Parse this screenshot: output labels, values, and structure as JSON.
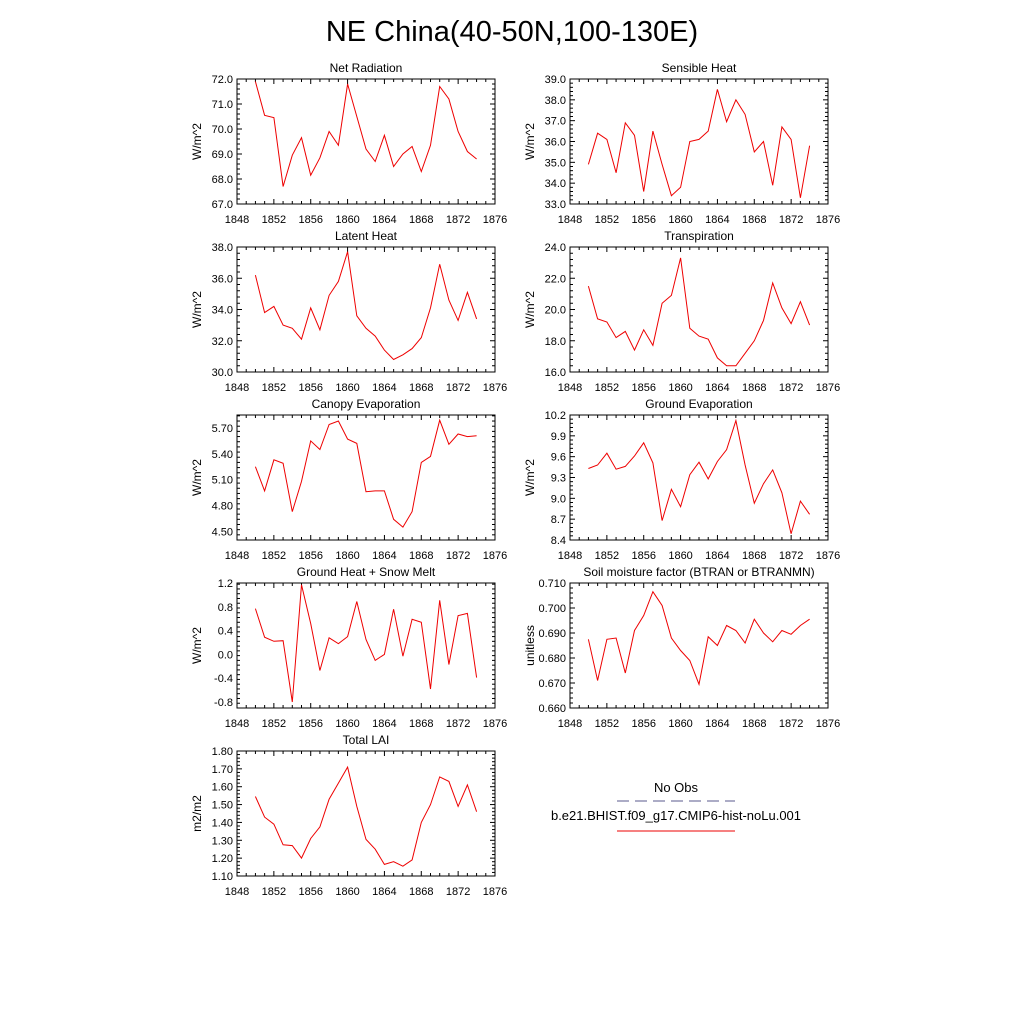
{
  "figure": {
    "title": "NE China(40-50N,100-130E)"
  },
  "legend": {
    "obs_label": "No Obs",
    "obs_color": "#5a5a8c",
    "model_label": "b.e21.BHIST.f09_g17.CMIP6-hist-noLu.001",
    "model_color": "#ee0000"
  },
  "chart_data": [
    {
      "type": "line",
      "title": "Net Radiation",
      "ylabel": "W/m^2",
      "xlim": [
        1848,
        1876
      ],
      "ylim": [
        67.0,
        72.0
      ],
      "x_ticks": [
        "1848",
        "1852",
        "1856",
        "1860",
        "1864",
        "1868",
        "1872",
        "1876"
      ],
      "y_ticks": [
        "67.0",
        "68.0",
        "69.0",
        "70.0",
        "71.0",
        "72.0"
      ],
      "series": [
        {
          "color": "#ee0000",
          "x": [
            1850,
            1851,
            1852,
            1853,
            1854,
            1855,
            1856,
            1857,
            1858,
            1859,
            1860,
            1861,
            1862,
            1863,
            1864,
            1865,
            1866,
            1867,
            1868,
            1869,
            1870,
            1871,
            1872,
            1873,
            1874
          ],
          "values": [
            71.9,
            70.55,
            70.45,
            67.7,
            68.95,
            69.65,
            68.15,
            68.85,
            69.9,
            69.35,
            71.8,
            70.5,
            69.2,
            68.7,
            69.75,
            68.5,
            69.0,
            69.3,
            68.3,
            69.35,
            71.7,
            71.2,
            69.9,
            69.1,
            68.8
          ]
        }
      ]
    },
    {
      "type": "line",
      "title": "Sensible Heat",
      "ylabel": "W/m^2",
      "xlim": [
        1848,
        1876
      ],
      "ylim": [
        33.0,
        39.0
      ],
      "x_ticks": [
        "1848",
        "1852",
        "1856",
        "1860",
        "1864",
        "1868",
        "1872",
        "1876"
      ],
      "y_ticks": [
        "33.0",
        "34.0",
        "35.0",
        "36.0",
        "37.0",
        "38.0",
        "39.0"
      ],
      "series": [
        {
          "color": "#ee0000",
          "x": [
            1850,
            1851,
            1852,
            1853,
            1854,
            1855,
            1856,
            1857,
            1858,
            1859,
            1860,
            1861,
            1862,
            1863,
            1864,
            1865,
            1866,
            1867,
            1868,
            1869,
            1870,
            1871,
            1872,
            1873,
            1874
          ],
          "values": [
            34.9,
            36.4,
            36.1,
            34.5,
            36.9,
            36.3,
            33.6,
            36.5,
            34.9,
            33.4,
            33.8,
            36.0,
            36.1,
            36.5,
            38.5,
            36.95,
            38.0,
            37.3,
            35.5,
            36.0,
            33.9,
            36.7,
            36.1,
            33.3,
            35.8
          ]
        }
      ]
    },
    {
      "type": "line",
      "title": "Latent Heat",
      "ylabel": "W/m^2",
      "xlim": [
        1848,
        1876
      ],
      "ylim": [
        30.0,
        38.0
      ],
      "x_ticks": [
        "1848",
        "1852",
        "1856",
        "1860",
        "1864",
        "1868",
        "1872",
        "1876"
      ],
      "y_ticks": [
        "30.0",
        "32.0",
        "34.0",
        "36.0",
        "38.0"
      ],
      "series": [
        {
          "color": "#ee0000",
          "x": [
            1850,
            1851,
            1852,
            1853,
            1854,
            1855,
            1856,
            1857,
            1858,
            1859,
            1860,
            1861,
            1862,
            1863,
            1864,
            1865,
            1866,
            1867,
            1868,
            1869,
            1870,
            1871,
            1872,
            1873,
            1874
          ],
          "values": [
            36.2,
            33.8,
            34.2,
            33.0,
            32.8,
            32.1,
            34.1,
            32.7,
            34.9,
            35.8,
            37.7,
            33.6,
            32.8,
            32.3,
            31.4,
            30.8,
            31.1,
            31.5,
            32.2,
            34.1,
            36.9,
            34.6,
            33.3,
            35.1,
            33.4
          ]
        }
      ]
    },
    {
      "type": "line",
      "title": "Transpiration",
      "ylabel": "W/m^2",
      "xlim": [
        1848,
        1876
      ],
      "ylim": [
        16.0,
        24.0
      ],
      "x_ticks": [
        "1848",
        "1852",
        "1856",
        "1860",
        "1864",
        "1868",
        "1872",
        "1876"
      ],
      "y_ticks": [
        "16.0",
        "18.0",
        "20.0",
        "22.0",
        "24.0"
      ],
      "series": [
        {
          "color": "#ee0000",
          "x": [
            1850,
            1851,
            1852,
            1853,
            1854,
            1855,
            1856,
            1857,
            1858,
            1859,
            1860,
            1861,
            1862,
            1863,
            1864,
            1865,
            1866,
            1867,
            1868,
            1869,
            1870,
            1871,
            1872,
            1873,
            1874
          ],
          "values": [
            21.5,
            19.4,
            19.2,
            18.2,
            18.6,
            17.4,
            18.7,
            17.7,
            20.4,
            20.9,
            23.3,
            18.8,
            18.3,
            18.1,
            16.9,
            16.4,
            16.4,
            17.2,
            18.0,
            19.3,
            21.7,
            20.1,
            19.1,
            20.5,
            19.0
          ]
        }
      ]
    },
    {
      "type": "line",
      "title": "Canopy Evaporation",
      "ylabel": "W/m^2",
      "xlim": [
        1848,
        1876
      ],
      "ylim": [
        4.4,
        5.85
      ],
      "x_ticks": [
        "1848",
        "1852",
        "1856",
        "1860",
        "1864",
        "1868",
        "1872",
        "1876"
      ],
      "y_ticks": [
        "4.50",
        "4.80",
        "5.10",
        "5.40",
        "5.70"
      ],
      "series": [
        {
          "color": "#ee0000",
          "x": [
            1850,
            1851,
            1852,
            1853,
            1854,
            1855,
            1856,
            1857,
            1858,
            1859,
            1860,
            1861,
            1862,
            1863,
            1864,
            1865,
            1866,
            1867,
            1868,
            1869,
            1870,
            1871,
            1872,
            1873,
            1874
          ],
          "values": [
            5.25,
            4.97,
            5.33,
            5.29,
            4.73,
            5.08,
            5.55,
            5.45,
            5.74,
            5.78,
            5.57,
            5.52,
            4.96,
            4.97,
            4.97,
            4.64,
            4.55,
            4.73,
            5.3,
            5.37,
            5.79,
            5.51,
            5.63,
            5.6,
            5.61
          ]
        }
      ]
    },
    {
      "type": "line",
      "title": "Ground Evaporation",
      "ylabel": "W/m^2",
      "xlim": [
        1848,
        1876
      ],
      "ylim": [
        8.4,
        10.2
      ],
      "x_ticks": [
        "1848",
        "1852",
        "1856",
        "1860",
        "1864",
        "1868",
        "1872",
        "1876"
      ],
      "y_ticks": [
        "8.4",
        "8.7",
        "9.0",
        "9.3",
        "9.6",
        "9.9",
        "10.2"
      ],
      "series": [
        {
          "color": "#ee0000",
          "x": [
            1850,
            1851,
            1852,
            1853,
            1854,
            1855,
            1856,
            1857,
            1858,
            1859,
            1860,
            1861,
            1862,
            1863,
            1864,
            1865,
            1866,
            1867,
            1868,
            1869,
            1870,
            1871,
            1872,
            1873,
            1874
          ],
          "values": [
            9.43,
            9.48,
            9.65,
            9.42,
            9.46,
            9.61,
            9.8,
            9.51,
            8.68,
            9.13,
            8.88,
            9.34,
            9.52,
            9.28,
            9.53,
            9.7,
            10.12,
            9.48,
            8.93,
            9.21,
            9.41,
            9.08,
            8.49,
            8.96,
            8.77
          ]
        }
      ]
    },
    {
      "type": "line",
      "title": "Ground Heat + Snow Melt",
      "ylabel": "W/m^2",
      "xlim": [
        1848,
        1876
      ],
      "ylim": [
        -0.9,
        1.2
      ],
      "x_ticks": [
        "1848",
        "1852",
        "1856",
        "1860",
        "1864",
        "1868",
        "1872",
        "1876"
      ],
      "y_ticks": [
        "-0.8",
        "-0.4",
        "0.0",
        "0.4",
        "0.8",
        "1.2"
      ],
      "series": [
        {
          "color": "#ee0000",
          "x": [
            1850,
            1851,
            1852,
            1853,
            1854,
            1855,
            1856,
            1857,
            1858,
            1859,
            1860,
            1861,
            1862,
            1863,
            1864,
            1865,
            1866,
            1867,
            1868,
            1869,
            1870,
            1871,
            1872,
            1873,
            1874
          ],
          "values": [
            0.77,
            0.29,
            0.22,
            0.23,
            -0.8,
            1.17,
            0.52,
            -0.27,
            0.28,
            0.18,
            0.3,
            0.89,
            0.25,
            -0.1,
            0.0,
            0.76,
            -0.03,
            0.59,
            0.54,
            -0.58,
            0.91,
            -0.17,
            0.65,
            0.69,
            -0.39
          ]
        }
      ]
    },
    {
      "type": "line",
      "title": "Soil moisture factor (BTRAN or BTRANMN)",
      "ylabel": "unitless",
      "xlim": [
        1848,
        1876
      ],
      "ylim": [
        0.66,
        0.71
      ],
      "x_ticks": [
        "1848",
        "1852",
        "1856",
        "1860",
        "1864",
        "1868",
        "1872",
        "1876"
      ],
      "y_ticks": [
        "0.660",
        "0.670",
        "0.680",
        "0.690",
        "0.700",
        "0.710"
      ],
      "series": [
        {
          "color": "#ee0000",
          "x": [
            1850,
            1851,
            1852,
            1853,
            1854,
            1855,
            1856,
            1857,
            1858,
            1859,
            1860,
            1861,
            1862,
            1863,
            1864,
            1865,
            1866,
            1867,
            1868,
            1869,
            1870,
            1871,
            1872,
            1873,
            1874
          ],
          "values": [
            0.6875,
            0.671,
            0.6875,
            0.688,
            0.674,
            0.691,
            0.697,
            0.7065,
            0.701,
            0.688,
            0.683,
            0.679,
            0.6695,
            0.6885,
            0.685,
            0.693,
            0.691,
            0.686,
            0.6955,
            0.69,
            0.6865,
            0.691,
            0.6895,
            0.693,
            0.6955
          ]
        }
      ]
    },
    {
      "type": "line",
      "title": "Total LAI",
      "ylabel": "m2/m2",
      "xlim": [
        1848,
        1876
      ],
      "ylim": [
        1.1,
        1.8
      ],
      "x_ticks": [
        "1848",
        "1852",
        "1856",
        "1860",
        "1864",
        "1868",
        "1872",
        "1876"
      ],
      "y_ticks": [
        "1.10",
        "1.20",
        "1.30",
        "1.40",
        "1.50",
        "1.60",
        "1.70",
        "1.80"
      ],
      "series": [
        {
          "color": "#ee0000",
          "x": [
            1850,
            1851,
            1852,
            1853,
            1854,
            1855,
            1856,
            1857,
            1858,
            1859,
            1860,
            1861,
            1862,
            1863,
            1864,
            1865,
            1866,
            1867,
            1868,
            1869,
            1870,
            1871,
            1872,
            1873,
            1874
          ],
          "values": [
            1.545,
            1.43,
            1.39,
            1.275,
            1.27,
            1.2,
            1.31,
            1.375,
            1.53,
            1.62,
            1.71,
            1.49,
            1.305,
            1.25,
            1.165,
            1.18,
            1.155,
            1.19,
            1.4,
            1.5,
            1.655,
            1.63,
            1.49,
            1.61,
            1.46
          ]
        }
      ]
    }
  ]
}
